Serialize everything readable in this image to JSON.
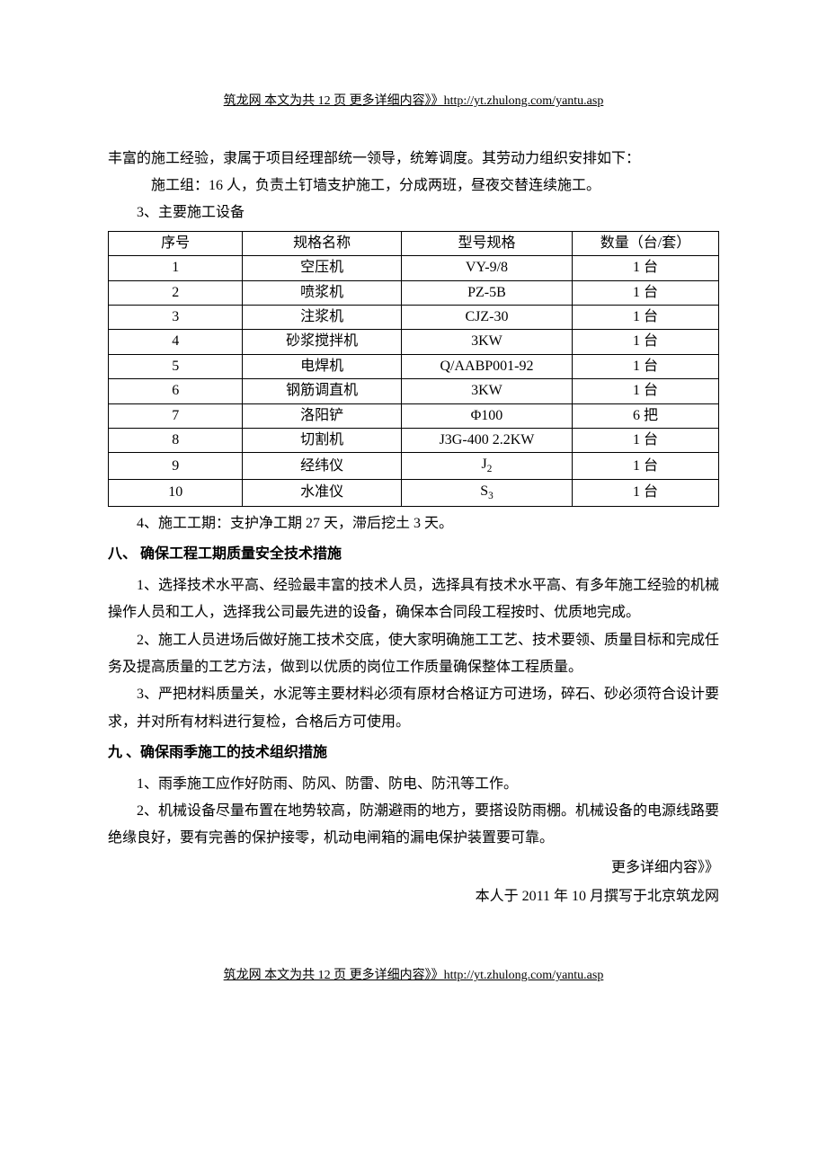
{
  "header": {
    "link_text": "筑龙网  本文为共 12 页  更多详细内容》》http://yt.zhulong.com/yantu.asp"
  },
  "body": {
    "p1": "丰富的施工经验，隶属于项目经理部统一领导，统筹调度。其劳动力组织安排如下：",
    "p2": "施工组：16 人，负责土钉墙支护施工，分成两班，昼夜交替连续施工。",
    "p3": "3、主要施工设备",
    "p4": "4、施工工期：支护净工期 27 天，滞后挖土 3 天。",
    "section8_title": "八、 确保工程工期质量安全技术措施",
    "s8_p1": "1、选择技术水平高、经验最丰富的技术人员，选择具有技术水平高、有多年施工经验的机械操作人员和工人，选择我公司最先进的设备，确保本合同段工程按时、优质地完成。",
    "s8_p2": "2、施工人员进场后做好施工技术交底，使大家明确施工工艺、技术要领、质量目标和完成任务及提高质量的工艺方法，做到以优质的岗位工作质量确保整体工程质量。",
    "s8_p3": "3、严把材料质量关，水泥等主要材料必须有原材合格证方可进场，碎石、砂必须符合设计要求，并对所有材料进行复检，合格后方可使用。",
    "section9_title": "九 、确保雨季施工的技术组织措施",
    "s9_p1": "1、雨季施工应作好防雨、防风、防雷、防电、防汛等工作。",
    "s9_p2": "2、机械设备尽量布置在地势较高，防潮避雨的地方，要搭设防雨棚。机械设备的电源线路要绝缘良好，要有完善的保护接零，机动电闸箱的漏电保护装置要可靠。",
    "more_link": "更多详细内容》》",
    "attribution": "本人于 2011 年 10 月撰写于北京筑龙网"
  },
  "table": {
    "headers": [
      "序号",
      "规格名称",
      "型号规格",
      "数量（台/套）"
    ],
    "rows": [
      {
        "no": "1",
        "name": "空压机",
        "model": "VY-9/8",
        "qty": "1 台"
      },
      {
        "no": "2",
        "name": "喷浆机",
        "model": "PZ-5B",
        "qty": "1 台"
      },
      {
        "no": "3",
        "name": "注浆机",
        "model": "CJZ-30",
        "qty": "1 台"
      },
      {
        "no": "4",
        "name": "砂浆搅拌机",
        "model": "3KW",
        "qty": "1 台"
      },
      {
        "no": "5",
        "name": "电焊机",
        "model": "Q/AABP001-92",
        "qty": "1 台"
      },
      {
        "no": "6",
        "name": "钢筋调直机",
        "model": "3KW",
        "qty": "1 台"
      },
      {
        "no": "7",
        "name": "洛阳铲",
        "model": "Φ100",
        "qty": "6 把"
      },
      {
        "no": "8",
        "name": "切割机",
        "model": "J3G-400  2.2KW",
        "qty": "1 台"
      },
      {
        "no": "9",
        "name": "经纬仪",
        "model_base": "J",
        "model_sub": "2",
        "qty": "1 台"
      },
      {
        "no": "10",
        "name": "水准仪",
        "model_base": "S",
        "model_sub": "3",
        "qty": "1 台"
      }
    ]
  },
  "footer": {
    "link_text": "筑龙网  本文为共 12 页  更多详细内容》》http://yt.zhulong.com/yantu.asp"
  }
}
